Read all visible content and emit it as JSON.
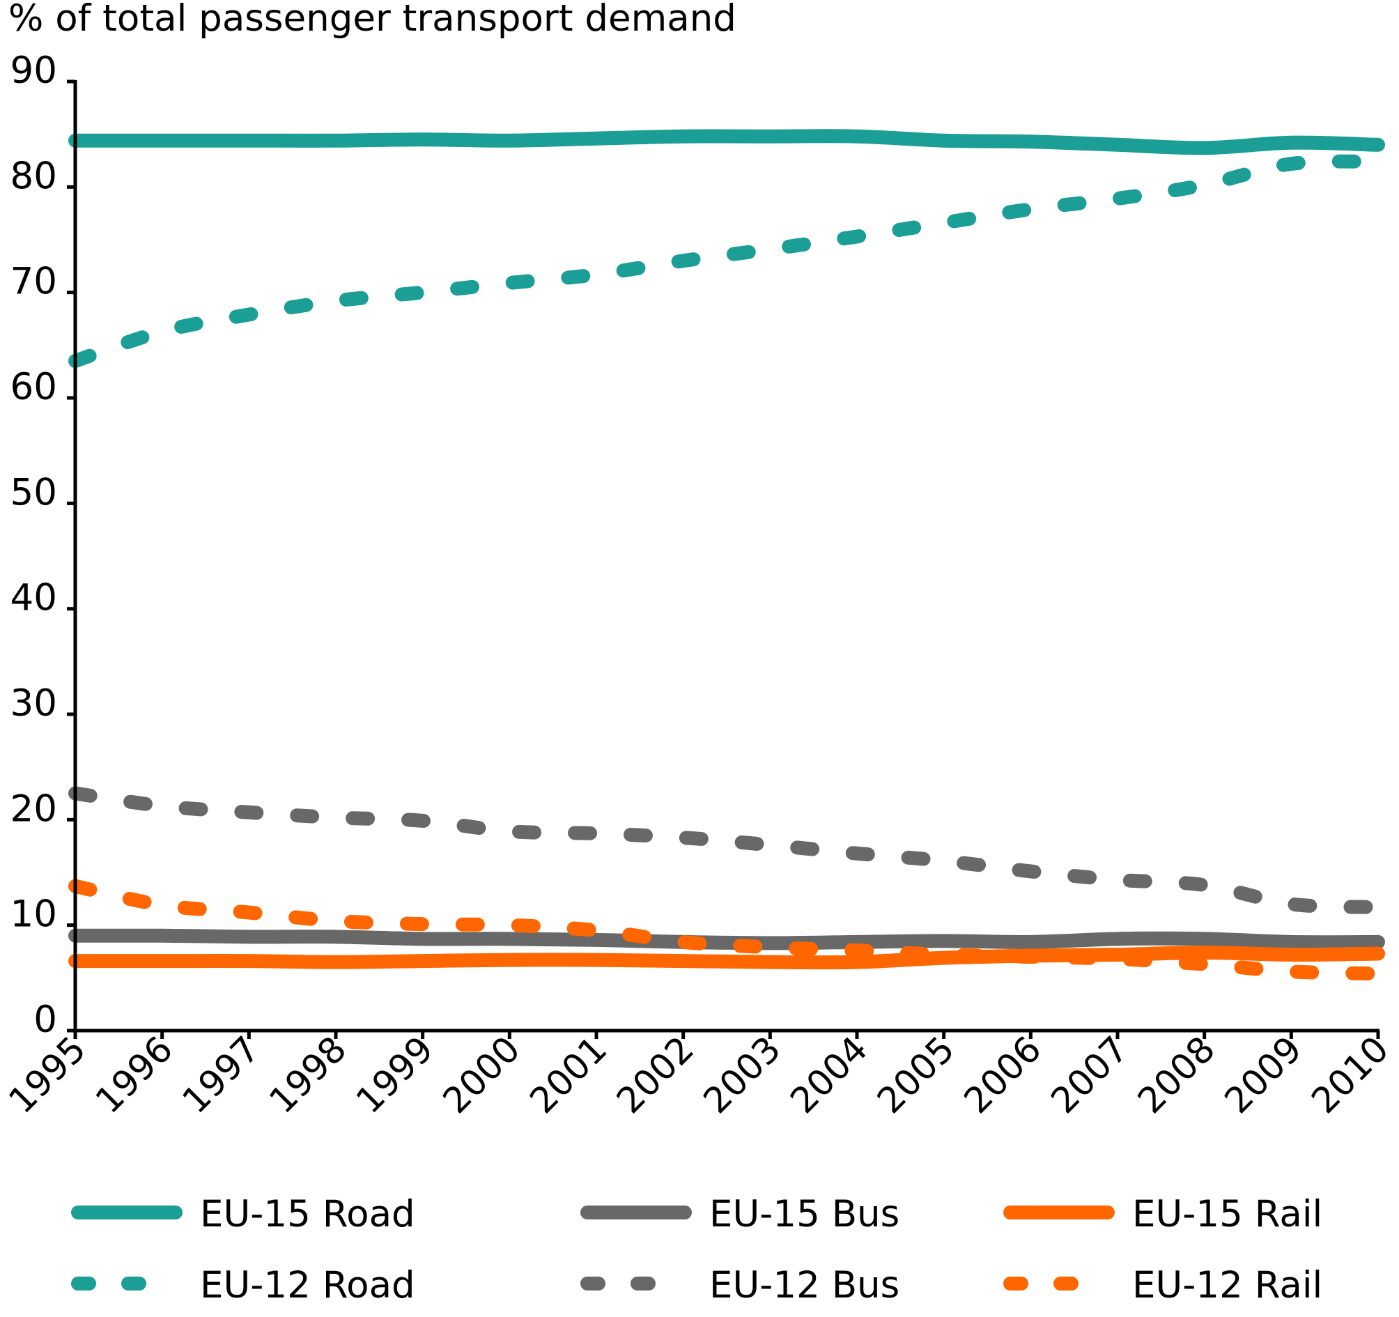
{
  "chart_data": {
    "type": "line",
    "title": "% of total passenger transport demand",
    "xlabel": "",
    "ylabel": "% of total passenger transport demand",
    "ylim": [
      0,
      90
    ],
    "yticks": [
      "0",
      "10",
      "20",
      "30",
      "40",
      "50",
      "60",
      "70",
      "80",
      "90"
    ],
    "x": [
      "1995",
      "1996",
      "1997",
      "1998",
      "1999",
      "2000",
      "2001",
      "2002",
      "2003",
      "2004",
      "2005",
      "2006",
      "2007",
      "2008",
      "2009",
      "2010"
    ],
    "grid": false,
    "legend_position": "bottom",
    "series": [
      {
        "name": "EU-15 Road",
        "color": "#1a9e96",
        "style": "solid",
        "values": [
          84.4,
          84.4,
          84.4,
          84.4,
          84.5,
          84.4,
          84.6,
          84.8,
          84.8,
          84.8,
          84.4,
          84.3,
          84.0,
          83.7,
          84.2,
          84.0
        ]
      },
      {
        "name": "EU-15 Bus",
        "color": "#686868",
        "style": "solid",
        "values": [
          9.0,
          9.0,
          8.9,
          8.9,
          8.7,
          8.7,
          8.6,
          8.4,
          8.3,
          8.4,
          8.5,
          8.4,
          8.7,
          8.7,
          8.4,
          8.4
        ]
      },
      {
        "name": "EU-15 Rail",
        "color": "#ff6600",
        "style": "solid",
        "values": [
          6.6,
          6.6,
          6.6,
          6.5,
          6.6,
          6.7,
          6.7,
          6.6,
          6.5,
          6.5,
          6.9,
          7.1,
          7.2,
          7.4,
          7.2,
          7.3
        ]
      },
      {
        "name": "EU-12 Road",
        "color": "#1a9e96",
        "style": "dashed",
        "values": [
          63.5,
          66.3,
          67.9,
          69.2,
          70.0,
          70.9,
          71.7,
          73.0,
          74.1,
          75.3,
          76.6,
          77.9,
          78.9,
          80.2,
          82.2,
          82.4
        ]
      },
      {
        "name": "EU-12 Bus",
        "color": "#686868",
        "style": "dashed",
        "values": [
          22.5,
          21.3,
          20.7,
          20.2,
          19.9,
          18.9,
          18.7,
          18.3,
          17.6,
          16.8,
          16.1,
          15.1,
          14.3,
          13.8,
          12.0,
          11.7
        ]
      },
      {
        "name": "EU-12 Rail",
        "color": "#ff6600",
        "style": "dashed",
        "values": [
          13.7,
          11.9,
          11.2,
          10.4,
          10.1,
          10.0,
          9.5,
          8.4,
          7.9,
          7.6,
          7.2,
          7.0,
          6.8,
          6.3,
          5.6,
          5.4
        ]
      }
    ]
  }
}
